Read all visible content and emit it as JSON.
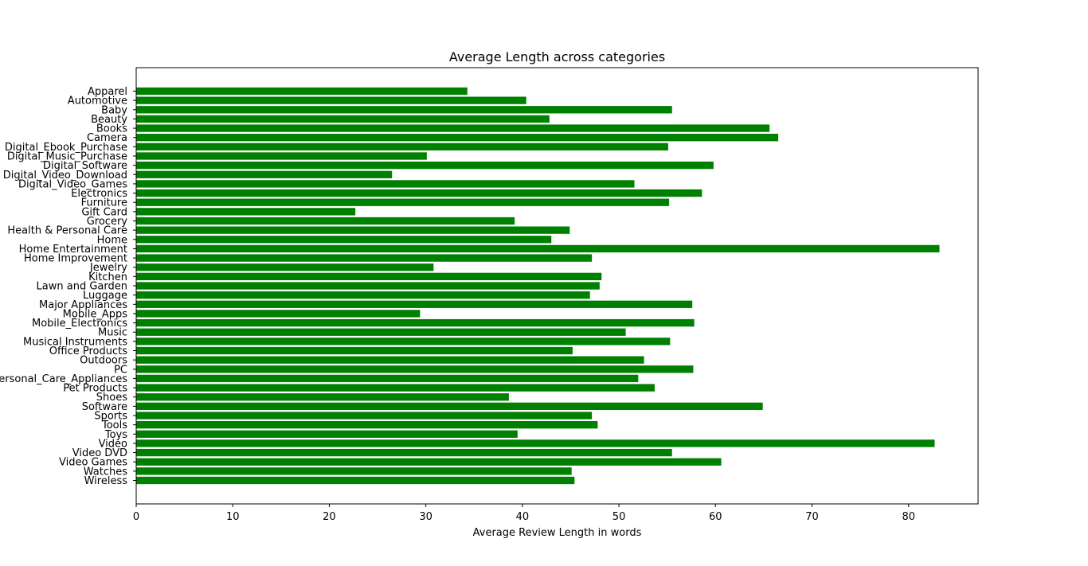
{
  "colors": {
    "bar": "#008000",
    "axis": "#000000",
    "background": "#ffffff"
  },
  "chart_data": {
    "type": "bar",
    "orientation": "horizontal",
    "title": "Average Length across categories",
    "xlabel": "Average Review Length in words",
    "ylabel": "",
    "xlim": [
      0,
      87.2
    ],
    "xticks": [
      0,
      10,
      20,
      30,
      40,
      50,
      60,
      70,
      80
    ],
    "grid": false,
    "categories": [
      "Apparel",
      "Automotive",
      "Baby",
      "Beauty",
      "Books",
      "Camera",
      "Digital_Ebook_Purchase",
      "Digital_Music_Purchase",
      "Digital_Software",
      "Digital_Video_Download",
      "Digital_Video_Games",
      "Electronics",
      "Furniture",
      "Gift Card",
      "Grocery",
      "Health & Personal Care",
      "Home",
      "Home Entertainment",
      "Home Improvement",
      "Jewelry",
      "Kitchen",
      "Lawn and Garden",
      "Luggage",
      "Major Appliances",
      "Mobile_Apps",
      "Mobile_Electronics",
      "Music",
      "Musical Instruments",
      "Office Products",
      "Outdoors",
      "PC",
      "Personal_Care_Appliances",
      "Pet Products",
      "Shoes",
      "Software",
      "Sports",
      "Tools",
      "Toys",
      "Video",
      "Video DVD",
      "Video Games",
      "Watches",
      "Wireless"
    ],
    "values": [
      34.3,
      40.4,
      55.5,
      42.8,
      65.6,
      66.5,
      55.1,
      30.1,
      59.8,
      26.5,
      51.6,
      58.6,
      55.2,
      22.7,
      39.2,
      44.9,
      43.0,
      83.2,
      47.2,
      30.8,
      48.2,
      48.0,
      47.0,
      57.6,
      29.4,
      57.8,
      50.7,
      55.3,
      45.2,
      52.6,
      57.7,
      52.0,
      53.7,
      38.6,
      64.9,
      47.2,
      47.8,
      39.5,
      82.7,
      55.5,
      60.6,
      45.1,
      45.4
    ]
  }
}
